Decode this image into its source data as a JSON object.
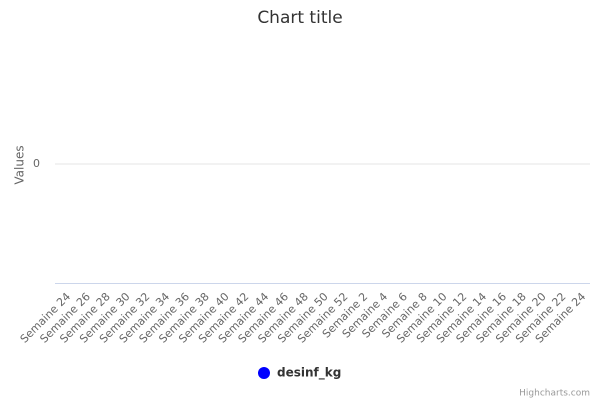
{
  "chart_data": {
    "type": "line",
    "title": "Chart title",
    "y_axis_label": "Values",
    "categories": [
      "Semaine 24",
      "Semaine 26",
      "Semaine 28",
      "Semaine 30",
      "Semaine 32",
      "Semaine 34",
      "Semaine 36",
      "Semaine 38",
      "Semaine 40",
      "Semaine 42",
      "Semaine 44",
      "Semaine 46",
      "Semaine 48",
      "Semaine 50",
      "Semaine 52",
      "Semaine 2",
      "Semaine 4",
      "Semaine 6",
      "Semaine 8",
      "Semaine 10",
      "Semaine 12",
      "Semaine 14",
      "Semaine 16",
      "Semaine 18",
      "Semaine 20",
      "Semaine 22",
      "Semaine 24"
    ],
    "series": [
      {
        "name": "desinf_kg",
        "color": "#0000ff",
        "values": [
          null,
          null,
          null,
          null,
          null,
          null,
          null,
          null,
          null,
          null,
          null,
          null,
          null,
          null,
          null,
          null,
          null,
          null,
          null,
          null,
          null,
          null,
          null,
          null,
          null,
          null,
          null
        ]
      }
    ],
    "ylim": [
      -1,
      1
    ],
    "yticks": [
      0
    ],
    "grid": true,
    "legend": "bottom",
    "credits": "Highcharts.com"
  }
}
